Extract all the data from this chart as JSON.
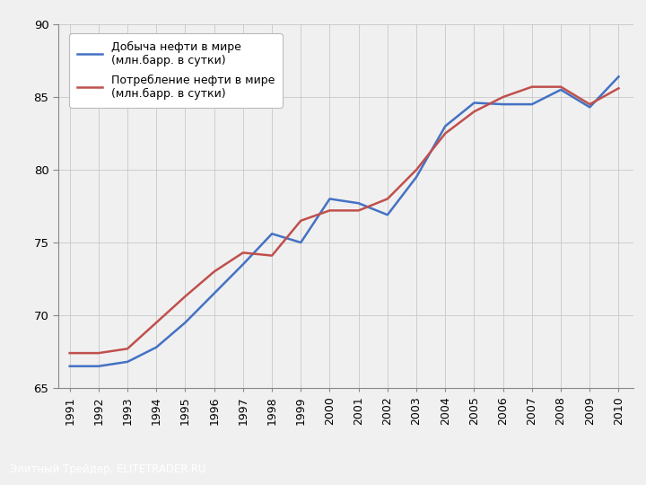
{
  "years": [
    1991,
    1992,
    1993,
    1994,
    1995,
    1996,
    1997,
    1998,
    1999,
    2000,
    2001,
    2002,
    2003,
    2004,
    2005,
    2006,
    2007,
    2008,
    2009,
    2010
  ],
  "production": [
    66.5,
    66.5,
    66.8,
    67.8,
    69.5,
    71.5,
    73.5,
    75.6,
    75.0,
    78.0,
    77.7,
    76.9,
    79.5,
    83.0,
    84.6,
    84.5,
    84.5,
    85.5,
    84.3,
    86.4
  ],
  "consumption": [
    67.4,
    67.4,
    67.7,
    69.5,
    71.3,
    73.0,
    74.3,
    74.1,
    76.5,
    77.2,
    77.2,
    78.0,
    80.0,
    82.5,
    84.0,
    85.0,
    85.7,
    85.7,
    84.5,
    85.6
  ],
  "production_color": "#4472C4",
  "consumption_color": "#C0504D",
  "legend_production": "Добыча нефти в мире\n(млн.барр. в сутки)",
  "legend_consumption": "Потребление нефти в мире\n(млн.барр. в сутки)",
  "ylim": [
    65,
    90
  ],
  "yticks": [
    65,
    70,
    75,
    80,
    85,
    90
  ],
  "footer_text": "Элитный Трейдер, ELITETRADER.RU",
  "bg_color": "#F0F0F0",
  "plot_bg": "#F0F0F0",
  "footer_bg": "#4B4B4B",
  "grid_color": "#C8C8C8",
  "line_width": 1.8,
  "spine_color": "#888888"
}
